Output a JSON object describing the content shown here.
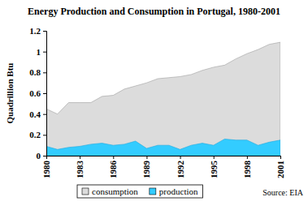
{
  "chart_data": {
    "type": "area",
    "title": "Energy Production and Consumption in Portugal, 1980-2001",
    "y_label": "Quadrillion Btu",
    "annotation": "Source: EIA",
    "x": [
      1980,
      1981,
      1982,
      1983,
      1984,
      1985,
      1986,
      1987,
      1988,
      1989,
      1990,
      1991,
      1992,
      1993,
      1994,
      1995,
      1996,
      1997,
      1998,
      1999,
      2000,
      2001
    ],
    "xlim": [
      1980,
      2001
    ],
    "xticks": [
      1980,
      1983,
      1986,
      1989,
      1992,
      1995,
      1998,
      2001
    ],
    "ylim": [
      0,
      1.2
    ],
    "yticks": [
      0,
      0.2,
      0.4,
      0.6,
      0.8,
      1,
      1.2
    ],
    "grid": false,
    "legend": "bottom",
    "series": [
      {
        "name": "consumption",
        "color": "#dcdcdc",
        "values": [
          0.45,
          0.4,
          0.51,
          0.51,
          0.51,
          0.57,
          0.58,
          0.64,
          0.67,
          0.7,
          0.74,
          0.75,
          0.76,
          0.78,
          0.82,
          0.85,
          0.87,
          0.93,
          0.98,
          1.02,
          1.07,
          1.09
        ]
      },
      {
        "name": "production",
        "color": "#33ccff",
        "values": [
          0.09,
          0.06,
          0.08,
          0.09,
          0.11,
          0.12,
          0.1,
          0.11,
          0.14,
          0.07,
          0.1,
          0.1,
          0.06,
          0.1,
          0.12,
          0.1,
          0.16,
          0.15,
          0.15,
          0.1,
          0.13,
          0.15
        ]
      }
    ]
  }
}
